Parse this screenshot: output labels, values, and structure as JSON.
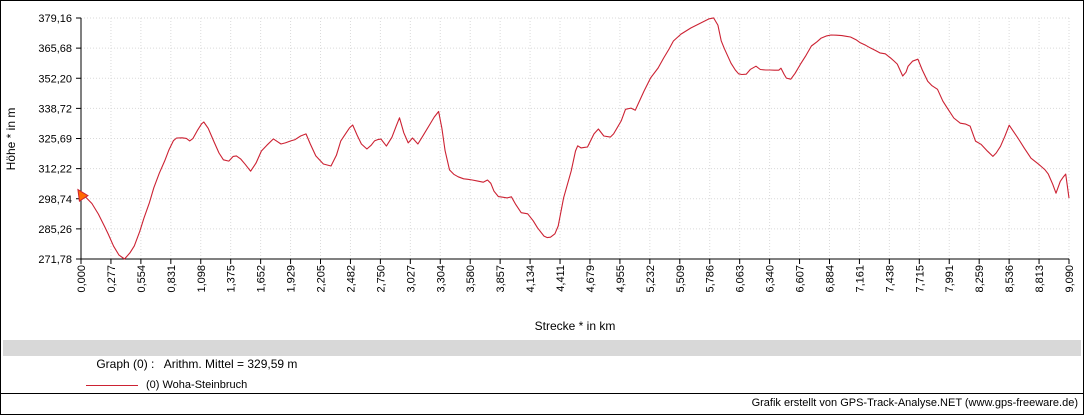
{
  "colors": {
    "line": "#cc2233",
    "marker_fill": "#ff6a00",
    "grid": "#dadada",
    "axis": "#000000",
    "stats_bar_bg": "#d8d8d8"
  },
  "chart_data": {
    "type": "line",
    "title": "",
    "xlabel": "Strecke *  in  km",
    "ylabel": "Höhe *  in  m",
    "xlim": [
      0,
      9.09
    ],
    "ylim": [
      271.78,
      379.16
    ],
    "grid": true,
    "legend_position": "bottom-left",
    "x_tick_labels": [
      "0,000",
      "0,277",
      "0,554",
      "0,831",
      "1,098",
      "1,375",
      "1,652",
      "1,929",
      "2,205",
      "2,482",
      "2,750",
      "3,027",
      "3,304",
      "3,580",
      "3,857",
      "4,134",
      "4,411",
      "4,679",
      "4,955",
      "5,232",
      "5,509",
      "5,786",
      "6,063",
      "6,340",
      "6,607",
      "6,884",
      "7,161",
      "7,438",
      "7,715",
      "7,991",
      "8,259",
      "8,536",
      "8,813",
      "9,090"
    ],
    "y_tick_labels": [
      "379,16",
      "365,68",
      "352,20",
      "338,72",
      "325,69",
      "312,22",
      "298,74",
      "285,26",
      "271,78"
    ],
    "start_marker": {
      "km": 0.013,
      "m": 299.8
    },
    "series": [
      {
        "name": "(0) Woha-Steinbruch",
        "color": "#cc2233",
        "points": [
          [
            0.0,
            299.5
          ],
          [
            0.02,
            300.7
          ],
          [
            0.05,
            299.0
          ],
          [
            0.1,
            296.5
          ],
          [
            0.16,
            291.8
          ],
          [
            0.22,
            286.0
          ],
          [
            0.25,
            282.9
          ],
          [
            0.3,
            277.5
          ],
          [
            0.35,
            273.5
          ],
          [
            0.4,
            271.8
          ],
          [
            0.45,
            274.5
          ],
          [
            0.49,
            277.6
          ],
          [
            0.54,
            284.0
          ],
          [
            0.58,
            290.1
          ],
          [
            0.63,
            297.0
          ],
          [
            0.67,
            303.5
          ],
          [
            0.72,
            310.0
          ],
          [
            0.77,
            315.5
          ],
          [
            0.81,
            320.5
          ],
          [
            0.85,
            324.5
          ],
          [
            0.88,
            325.7
          ],
          [
            0.93,
            325.8
          ],
          [
            0.97,
            325.5
          ],
          [
            1.0,
            324.4
          ],
          [
            1.03,
            325.5
          ],
          [
            1.07,
            329.0
          ],
          [
            1.11,
            332.0
          ],
          [
            1.13,
            332.8
          ],
          [
            1.17,
            330.0
          ],
          [
            1.22,
            324.4
          ],
          [
            1.27,
            319.0
          ],
          [
            1.31,
            316.0
          ],
          [
            1.36,
            315.4
          ],
          [
            1.4,
            317.5
          ],
          [
            1.43,
            317.7
          ],
          [
            1.47,
            316.3
          ],
          [
            1.51,
            314.0
          ],
          [
            1.56,
            310.9
          ],
          [
            1.61,
            314.5
          ],
          [
            1.66,
            319.9
          ],
          [
            1.71,
            322.5
          ],
          [
            1.77,
            325.3
          ],
          [
            1.81,
            324.0
          ],
          [
            1.84,
            323.0
          ],
          [
            1.88,
            323.5
          ],
          [
            1.93,
            324.4
          ],
          [
            1.97,
            325.0
          ],
          [
            2.02,
            326.6
          ],
          [
            2.07,
            327.5
          ],
          [
            2.11,
            323.0
          ],
          [
            2.16,
            317.7
          ],
          [
            2.23,
            314.1
          ],
          [
            2.3,
            313.2
          ],
          [
            2.35,
            318.0
          ],
          [
            2.39,
            324.4
          ],
          [
            2.44,
            328.0
          ],
          [
            2.47,
            330.2
          ],
          [
            2.5,
            331.5
          ],
          [
            2.54,
            327.0
          ],
          [
            2.58,
            323.0
          ],
          [
            2.63,
            320.8
          ],
          [
            2.67,
            322.5
          ],
          [
            2.7,
            324.4
          ],
          [
            2.73,
            325.0
          ],
          [
            2.76,
            325.2
          ],
          [
            2.81,
            322.1
          ],
          [
            2.86,
            326.0
          ],
          [
            2.9,
            331.0
          ],
          [
            2.93,
            334.7
          ],
          [
            2.97,
            328.0
          ],
          [
            3.01,
            323.5
          ],
          [
            3.05,
            325.7
          ],
          [
            3.1,
            323.0
          ],
          [
            3.15,
            327.0
          ],
          [
            3.2,
            331.0
          ],
          [
            3.25,
            335.0
          ],
          [
            3.29,
            337.5
          ],
          [
            3.32,
            330.0
          ],
          [
            3.35,
            320.0
          ],
          [
            3.39,
            311.5
          ],
          [
            3.43,
            309.5
          ],
          [
            3.47,
            308.4
          ],
          [
            3.52,
            307.5
          ],
          [
            3.56,
            307.3
          ],
          [
            3.6,
            307.0
          ],
          [
            3.65,
            306.5
          ],
          [
            3.7,
            306.0
          ],
          [
            3.74,
            307.0
          ],
          [
            3.77,
            305.5
          ],
          [
            3.8,
            302.0
          ],
          [
            3.84,
            299.6
          ],
          [
            3.88,
            299.3
          ],
          [
            3.92,
            299.0
          ],
          [
            3.96,
            299.5
          ],
          [
            4.0,
            296.0
          ],
          [
            4.05,
            292.4
          ],
          [
            4.11,
            291.9
          ],
          [
            4.16,
            288.8
          ],
          [
            4.2,
            285.7
          ],
          [
            4.26,
            282.0
          ],
          [
            4.29,
            281.3
          ],
          [
            4.32,
            281.5
          ],
          [
            4.36,
            283.0
          ],
          [
            4.39,
            286.5
          ],
          [
            4.44,
            299.0
          ],
          [
            4.51,
            311.0
          ],
          [
            4.55,
            319.9
          ],
          [
            4.57,
            322.2
          ],
          [
            4.6,
            321.3
          ],
          [
            4.63,
            321.5
          ],
          [
            4.66,
            321.7
          ],
          [
            4.72,
            327.5
          ],
          [
            4.76,
            329.7
          ],
          [
            4.81,
            326.6
          ],
          [
            4.87,
            326.1
          ],
          [
            4.9,
            327.5
          ],
          [
            4.97,
            333.3
          ],
          [
            5.01,
            338.5
          ],
          [
            5.06,
            339.0
          ],
          [
            5.1,
            338.1
          ],
          [
            5.18,
            346.6
          ],
          [
            5.24,
            352.4
          ],
          [
            5.31,
            356.9
          ],
          [
            5.36,
            361.3
          ],
          [
            5.41,
            365.3
          ],
          [
            5.45,
            368.9
          ],
          [
            5.52,
            372.0
          ],
          [
            5.61,
            374.7
          ],
          [
            5.7,
            376.9
          ],
          [
            5.78,
            378.8
          ],
          [
            5.82,
            379.2
          ],
          [
            5.86,
            376.0
          ],
          [
            5.89,
            369.0
          ],
          [
            5.92,
            365.5
          ],
          [
            5.98,
            359.0
          ],
          [
            6.02,
            356.0
          ],
          [
            6.05,
            354.3
          ],
          [
            6.08,
            354.0
          ],
          [
            6.12,
            354.1
          ],
          [
            6.16,
            356.3
          ],
          [
            6.21,
            357.7
          ],
          [
            6.25,
            356.2
          ],
          [
            6.3,
            356.0
          ],
          [
            6.34,
            356.0
          ],
          [
            6.38,
            355.9
          ],
          [
            6.42,
            355.9
          ],
          [
            6.44,
            356.8
          ],
          [
            6.47,
            354.0
          ],
          [
            6.49,
            352.4
          ],
          [
            6.53,
            351.9
          ],
          [
            6.57,
            354.5
          ],
          [
            6.62,
            358.6
          ],
          [
            6.67,
            362.5
          ],
          [
            6.72,
            366.7
          ],
          [
            6.77,
            368.5
          ],
          [
            6.81,
            370.2
          ],
          [
            6.86,
            371.2
          ],
          [
            6.9,
            371.6
          ],
          [
            6.95,
            371.5
          ],
          [
            7.0,
            371.3
          ],
          [
            7.04,
            371.0
          ],
          [
            7.08,
            370.7
          ],
          [
            7.13,
            369.5
          ],
          [
            7.17,
            368.1
          ],
          [
            7.22,
            367.0
          ],
          [
            7.26,
            365.9
          ],
          [
            7.31,
            364.7
          ],
          [
            7.35,
            363.6
          ],
          [
            7.4,
            363.2
          ],
          [
            7.45,
            361.3
          ],
          [
            7.48,
            360.0
          ],
          [
            7.51,
            358.6
          ],
          [
            7.54,
            355.5
          ],
          [
            7.56,
            353.3
          ],
          [
            7.59,
            355.0
          ],
          [
            7.61,
            357.7
          ],
          [
            7.65,
            359.9
          ],
          [
            7.7,
            360.8
          ],
          [
            7.74,
            356.0
          ],
          [
            7.79,
            351.0
          ],
          [
            7.83,
            349.0
          ],
          [
            7.88,
            347.4
          ],
          [
            7.93,
            342.1
          ],
          [
            7.97,
            339.0
          ],
          [
            8.03,
            334.6
          ],
          [
            8.09,
            332.3
          ],
          [
            8.14,
            331.9
          ],
          [
            8.18,
            331.0
          ],
          [
            8.23,
            324.3
          ],
          [
            8.28,
            322.9
          ],
          [
            8.34,
            319.8
          ],
          [
            8.39,
            317.5
          ],
          [
            8.42,
            319.0
          ],
          [
            8.46,
            322.0
          ],
          [
            8.5,
            326.5
          ],
          [
            8.54,
            331.4
          ],
          [
            8.58,
            328.5
          ],
          [
            8.62,
            325.7
          ],
          [
            8.68,
            321.1
          ],
          [
            8.74,
            316.7
          ],
          [
            8.81,
            314.0
          ],
          [
            8.83,
            313.2
          ],
          [
            8.87,
            311.5
          ],
          [
            8.9,
            309.6
          ],
          [
            8.94,
            305.1
          ],
          [
            8.97,
            301.1
          ],
          [
            9.01,
            306.4
          ],
          [
            9.04,
            308.5
          ],
          [
            9.06,
            309.6
          ],
          [
            9.09,
            298.9
          ]
        ]
      }
    ]
  },
  "stats_bar": {
    "text": "Graph (0) :   Arithm. Mittel = 329,59 m"
  },
  "legend": {
    "label": "(0) Woha-Steinbruch"
  },
  "footer": {
    "credit": "Grafik erstellt von GPS-Track-Analyse.NET (www.gps-freeware.de)"
  }
}
